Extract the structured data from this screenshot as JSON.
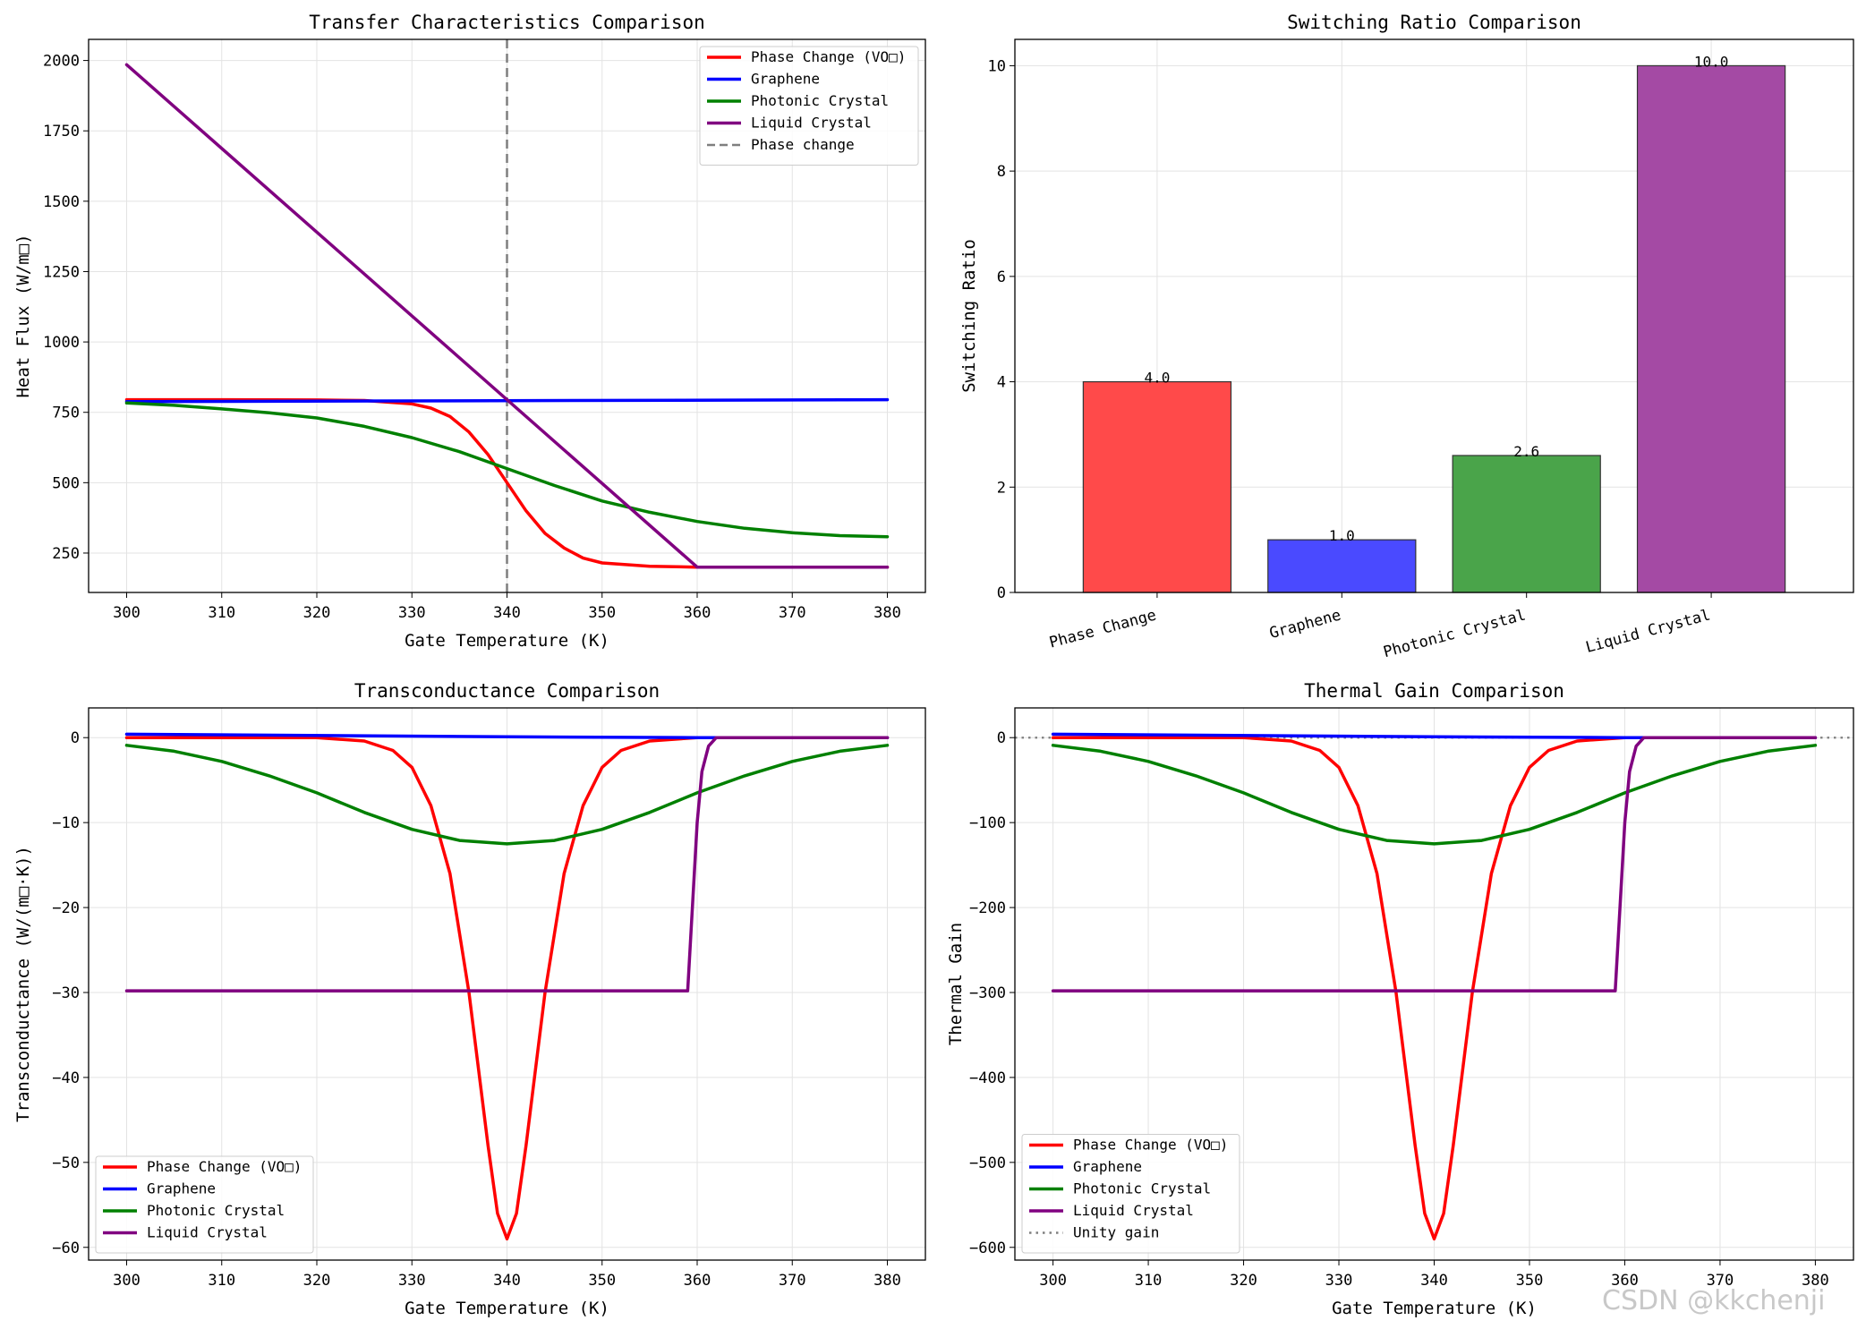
{
  "watermark": "CSDN @kkchenji",
  "chart_data": [
    {
      "id": "transfer",
      "type": "line",
      "title": "Transfer Characteristics Comparison",
      "xlabel": "Gate Temperature (K)",
      "ylabel": "Heat Flux (W/m□)",
      "xlim": [
        296,
        384
      ],
      "ylim": [
        110,
        2075
      ],
      "xticks": [
        300,
        310,
        320,
        330,
        340,
        350,
        360,
        370,
        380
      ],
      "yticks": [
        250,
        500,
        750,
        1000,
        1250,
        1500,
        1750,
        2000
      ],
      "grid": true,
      "legend": "top-right",
      "vline": {
        "x": 340,
        "name": "Phase change",
        "color": "#7f7f7f",
        "style": "dashed"
      },
      "series": [
        {
          "name": "Phase Change (VO□)",
          "color": "#ff0000",
          "x": [
            300,
            310,
            320,
            325,
            330,
            332,
            334,
            336,
            338,
            340,
            342,
            344,
            346,
            348,
            350,
            355,
            360,
            370,
            380
          ],
          "y": [
            795,
            795,
            794,
            792,
            780,
            765,
            735,
            680,
            600,
            500,
            400,
            320,
            268,
            232,
            215,
            203,
            200,
            200,
            200
          ]
        },
        {
          "name": "Graphene",
          "color": "#0000ff",
          "x": [
            300,
            380
          ],
          "y": [
            788,
            795
          ]
        },
        {
          "name": "Photonic Crystal",
          "color": "#008000",
          "x": [
            300,
            305,
            310,
            315,
            320,
            325,
            330,
            335,
            340,
            345,
            350,
            355,
            360,
            365,
            370,
            375,
            380
          ],
          "y": [
            783,
            775,
            762,
            748,
            730,
            700,
            660,
            610,
            550,
            490,
            435,
            395,
            362,
            338,
            322,
            312,
            308
          ]
        },
        {
          "name": "Liquid Crystal",
          "color": "#800080",
          "x": [
            300,
            360,
            362,
            380
          ],
          "y": [
            1985,
            200,
            200,
            200
          ]
        }
      ]
    },
    {
      "id": "switching",
      "type": "bar",
      "title": "Switching Ratio Comparison",
      "xlabel": "",
      "ylabel": "Switching Ratio",
      "ylim": [
        0,
        10.5
      ],
      "yticks": [
        0,
        2,
        4,
        6,
        8,
        10
      ],
      "grid": true,
      "categories": [
        "Phase Change",
        "Graphene",
        "Photonic Crystal",
        "Liquid Crystal"
      ],
      "values": [
        4.0,
        1.0,
        2.6,
        10.0
      ],
      "labels": [
        "4.0",
        "1.0",
        "2.6",
        "10.0"
      ],
      "colors": [
        "#ff4a4a",
        "#4a4aff",
        "#4aa44a",
        "#a44aa4"
      ]
    },
    {
      "id": "transconductance",
      "type": "line",
      "title": "Transconductance Comparison",
      "xlabel": "Gate Temperature (K)",
      "ylabel": "Transconductance (W/(m□·K))",
      "xlim": [
        296,
        384
      ],
      "ylim": [
        -61.5,
        3.5
      ],
      "xticks": [
        300,
        310,
        320,
        330,
        340,
        350,
        360,
        370,
        380
      ],
      "yticks": [
        0,
        -10,
        -20,
        -30,
        -40,
        -50,
        -60
      ],
      "grid": true,
      "legend": "bottom-left",
      "series": [
        {
          "name": "Phase Change (VO□)",
          "color": "#ff0000",
          "x": [
            300,
            320,
            325,
            328,
            330,
            332,
            334,
            336,
            338,
            339,
            340,
            341,
            342,
            344,
            346,
            348,
            350,
            352,
            355,
            360,
            380
          ],
          "y": [
            0,
            0,
            -0.4,
            -1.5,
            -3.5,
            -8,
            -16,
            -30,
            -48,
            -56,
            -59,
            -56,
            -48,
            -30,
            -16,
            -8,
            -3.5,
            -1.5,
            -0.4,
            0,
            0
          ]
        },
        {
          "name": "Graphene",
          "color": "#0000ff",
          "x": [
            300,
            340,
            360,
            380
          ],
          "y": [
            0.4,
            0.1,
            0,
            0
          ]
        },
        {
          "name": "Photonic Crystal",
          "color": "#008000",
          "x": [
            300,
            305,
            310,
            315,
            320,
            325,
            330,
            335,
            340,
            345,
            350,
            355,
            360,
            365,
            370,
            375,
            380
          ],
          "y": [
            -0.9,
            -1.6,
            -2.8,
            -4.5,
            -6.5,
            -8.8,
            -10.8,
            -12.1,
            -12.5,
            -12.1,
            -10.8,
            -8.8,
            -6.5,
            -4.5,
            -2.8,
            -1.6,
            -0.9
          ]
        },
        {
          "name": "Liquid Crystal",
          "color": "#800080",
          "x": [
            300,
            359,
            360,
            360.5,
            361.2,
            362,
            380
          ],
          "y": [
            -29.8,
            -29.8,
            -10,
            -4,
            -1,
            0,
            0
          ]
        }
      ]
    },
    {
      "id": "thermal_gain",
      "type": "line",
      "title": "Thermal Gain Comparison",
      "xlabel": "Gate Temperature (K)",
      "ylabel": "Thermal Gain",
      "xlim": [
        296,
        384
      ],
      "ylim": [
        -615,
        35
      ],
      "xticks": [
        300,
        310,
        320,
        330,
        340,
        350,
        360,
        370,
        380
      ],
      "yticks": [
        0,
        -100,
        -200,
        -300,
        -400,
        -500,
        -600
      ],
      "grid": true,
      "legend": "bottom-left",
      "hline": {
        "y": 0,
        "name": "Unity gain",
        "color": "#7f7f7f",
        "style": "dotted"
      },
      "series": [
        {
          "name": "Phase Change (VO□)",
          "color": "#ff0000",
          "x": [
            300,
            320,
            325,
            328,
            330,
            332,
            334,
            336,
            338,
            339,
            340,
            341,
            342,
            344,
            346,
            348,
            350,
            352,
            355,
            360,
            380
          ],
          "y": [
            0,
            0,
            -4,
            -15,
            -35,
            -80,
            -160,
            -300,
            -480,
            -560,
            -590,
            -560,
            -480,
            -300,
            -160,
            -80,
            -35,
            -15,
            -4,
            0,
            0
          ]
        },
        {
          "name": "Graphene",
          "color": "#0000ff",
          "x": [
            300,
            340,
            360,
            380
          ],
          "y": [
            4,
            1,
            0,
            0
          ]
        },
        {
          "name": "Photonic Crystal",
          "color": "#008000",
          "x": [
            300,
            305,
            310,
            315,
            320,
            325,
            330,
            335,
            340,
            345,
            350,
            355,
            360,
            365,
            370,
            375,
            380
          ],
          "y": [
            -9,
            -16,
            -28,
            -45,
            -65,
            -88,
            -108,
            -121,
            -125,
            -121,
            -108,
            -88,
            -65,
            -45,
            -28,
            -16,
            -9
          ]
        },
        {
          "name": "Liquid Crystal",
          "color": "#800080",
          "x": [
            300,
            359,
            360,
            360.5,
            361.2,
            362,
            380
          ],
          "y": [
            -298,
            -298,
            -100,
            -40,
            -10,
            0,
            0
          ]
        }
      ]
    }
  ]
}
